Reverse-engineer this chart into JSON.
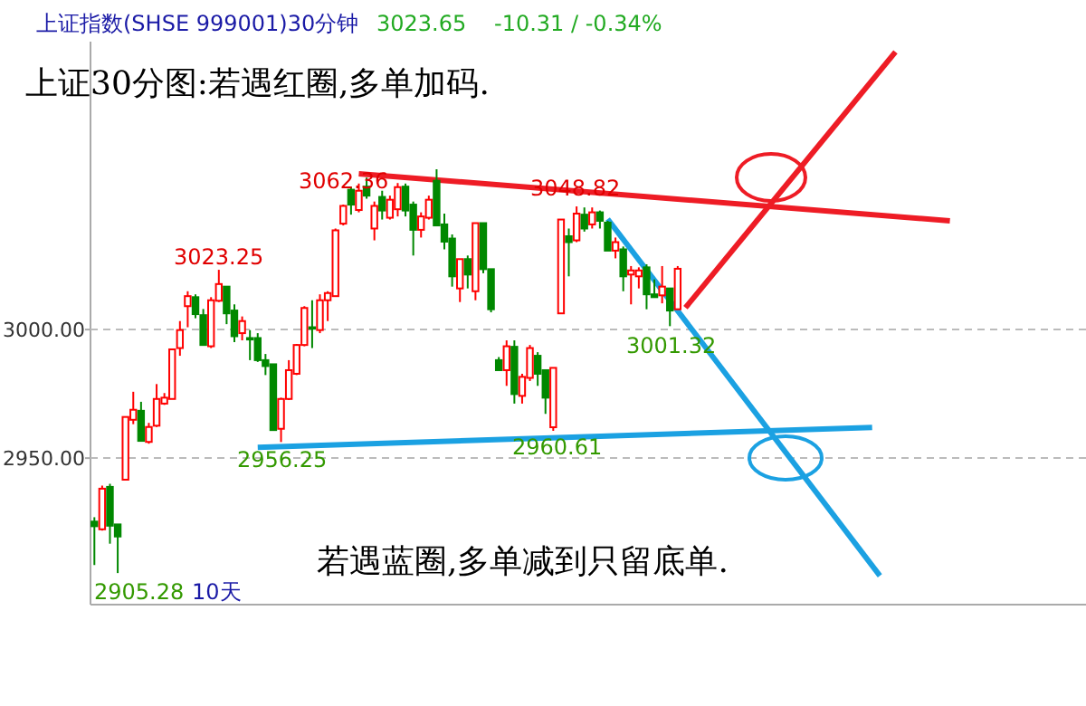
{
  "chart_data": {
    "type": "candlestick",
    "title": "上证指数(SHSE 999001)30分钟",
    "categories": [
      null,
      null,
      null,
      null,
      null,
      null,
      null,
      null,
      null,
      null,
      null,
      null,
      null,
      null,
      null,
      null,
      null,
      null,
      null,
      null,
      null,
      null,
      null,
      null,
      null,
      null,
      null,
      null,
      null,
      null,
      null,
      null,
      null,
      null,
      null,
      null,
      null,
      null,
      null,
      null,
      null,
      null,
      null,
      null,
      null,
      null,
      null,
      null,
      null,
      null,
      null,
      null,
      null,
      null,
      null,
      null,
      null,
      null,
      null,
      null,
      null,
      null,
      null,
      null,
      null,
      null,
      null,
      null,
      null,
      null,
      null,
      null,
      null,
      null,
      null,
      null,
      null,
      null,
      null,
      null,
      null,
      null,
      null,
      null,
      null,
      null,
      null,
      null,
      null,
      null,
      null,
      null,
      null,
      null,
      null,
      null,
      null,
      null,
      null,
      null,
      null,
      null,
      null,
      null,
      null,
      null,
      null,
      null,
      null,
      null,
      null,
      null,
      null,
      null,
      null,
      null,
      null,
      null,
      null,
      null,
      null,
      null,
      null,
      null,
      null,
      null,
      null,
      null
    ],
    "ohlc": [
      [
        2925.3,
        2927,
        2908.4,
        2923.5
      ],
      [
        2922.3,
        2939.3,
        2921.8,
        2938.1
      ],
      [
        2938.8,
        2940,
        2916.7,
        2923.7
      ],
      [
        2924.2,
        2924.2,
        2905.28,
        2919.5
      ],
      [
        2941.6,
        2966,
        2941.6,
        2966
      ],
      [
        2964.9,
        2975.8,
        2963.2,
        2968.8
      ],
      [
        2968.4,
        2971.9,
        2956.7,
        2956.7
      ],
      [
        2956.3,
        2963.7,
        2955.6,
        2962.1
      ],
      [
        2962.6,
        2978.8,
        2962.1,
        2973
      ],
      [
        2971.2,
        2975.3,
        2970.7,
        2973.5
      ],
      [
        2973,
        2992.3,
        2973,
        2992.3
      ],
      [
        2992.8,
        3003.3,
        2989.8,
        2999.8
      ],
      [
        3009.1,
        3014.9,
        3000.9,
        3013
      ],
      [
        3012.6,
        3013.7,
        3004.4,
        3006
      ],
      [
        3005.6,
        3008,
        2994,
        2994
      ],
      [
        2993.5,
        3012.6,
        2992.8,
        3011.4
      ],
      [
        3011.2,
        3023.25,
        3010.7,
        3017.7
      ],
      [
        3016.7,
        3016.7,
        3002.1,
        3006.3
      ],
      [
        3007.4,
        3009.8,
        2995.1,
        2997.4
      ],
      [
        2998.6,
        3005.1,
        2995.8,
        3003.3
      ],
      [
        2996.7,
        2999.8,
        2988.1,
        2996.3
      ],
      [
        2996.7,
        2998.6,
        2987.4,
        2988.1
      ],
      [
        2988.1,
        2990.5,
        2982.3,
        2985.8
      ],
      [
        2986.5,
        2986.5,
        2960.9,
        2960.9
      ],
      [
        2961.4,
        2973.5,
        2956.25,
        2973
      ],
      [
        2973,
        2988.1,
        2972.6,
        2984.2
      ],
      [
        2982.8,
        2994.4,
        2982.3,
        2994
      ],
      [
        2994,
        3009.1,
        2993.5,
        3008.4
      ],
      [
        3000.9,
        3011.4,
        2992.8,
        3000.5
      ],
      [
        2999.8,
        3013.7,
        2998.6,
        3011.4
      ],
      [
        3011.4,
        3014.9,
        3003.3,
        3014.2
      ],
      [
        3013,
        3039.3,
        3013,
        3038.6
      ],
      [
        3041.2,
        3048.6,
        3040.5,
        3048.1
      ],
      [
        3054.4,
        3055.6,
        3044.7,
        3048.6
      ],
      [
        3046.5,
        3056.8,
        3045.6,
        3054
      ],
      [
        3055.6,
        3059.1,
        3050.9,
        3052.1
      ],
      [
        3039.3,
        3049.8,
        3034.7,
        3048.1
      ],
      [
        3051.6,
        3054,
        3042.8,
        3046.3
      ],
      [
        3043.5,
        3052.1,
        3042.8,
        3050.5
      ],
      [
        3046.8,
        3057,
        3044,
        3055.4
      ],
      [
        3055.6,
        3056.8,
        3044,
        3046.3
      ],
      [
        3048.6,
        3049.8,
        3028.8,
        3038.8
      ],
      [
        3038.8,
        3045.6,
        3035.8,
        3044
      ],
      [
        3043.5,
        3052.1,
        3042.8,
        3050.5
      ],
      [
        3057.9,
        3062.36,
        3040.5,
        3040.5
      ],
      [
        3040.9,
        3045.1,
        3031.2,
        3034.2
      ],
      [
        3035.4,
        3037,
        3016.7,
        3020.7
      ],
      [
        3016,
        3027.4,
        3010.7,
        3027.4
      ],
      [
        3027.4,
        3028.8,
        3016,
        3021.4
      ],
      [
        3014.9,
        3041.4,
        3011.4,
        3041.4
      ],
      [
        3041.4,
        3041.4,
        3021.9,
        3023.5
      ],
      [
        3023.5,
        3023.5,
        3006.7,
        3007.9
      ],
      [
        2988.1,
        2989.3,
        2984.2,
        2984.2
      ],
      [
        2984.2,
        2995.8,
        2978.1,
        2993.5
      ],
      [
        2993.3,
        2995.8,
        2971.2,
        2974.9
      ],
      [
        2974.2,
        2982.8,
        2971.2,
        2981.6
      ],
      [
        2981.2,
        2994,
        2980,
        2992.8
      ],
      [
        2989.8,
        2991.2,
        2978.1,
        2982.8
      ],
      [
        2984.2,
        2984.2,
        2967.2,
        2973.5
      ],
      [
        2962,
        2985.1,
        2960.61,
        2985.1
      ],
      [
        3006.3,
        3042.8,
        3006.3,
        3042.8
      ],
      [
        3036.3,
        3039.3,
        3020.7,
        3034
      ],
      [
        3034.7,
        3047.9,
        3034,
        3045.1
      ],
      [
        3044.7,
        3047.5,
        3038.1,
        3039.3
      ],
      [
        3040.9,
        3047.5,
        3039.3,
        3045.6
      ],
      [
        3045.6,
        3046.3,
        3039.3,
        3042.3
      ],
      [
        3041.6,
        3042.3,
        3030.7,
        3030.7
      ],
      [
        3030.7,
        3035.8,
        3027.7,
        3034
      ],
      [
        3031.2,
        3032.3,
        3014.9,
        3020.7
      ],
      [
        3021.4,
        3024.7,
        3009.8,
        3023
      ],
      [
        3020.7,
        3024.2,
        3016,
        3023
      ],
      [
        3024.2,
        3025.4,
        3007.9,
        3013.7
      ],
      [
        3013.7,
        3019.5,
        3012.6,
        3012.6
      ],
      [
        3013.3,
        3024.7,
        3010.2,
        3016.7
      ],
      [
        3016,
        3016,
        3001.32,
        3007.4
      ],
      [
        3007.9,
        3024.7,
        3007.9,
        3023.65
      ],
      null,
      null,
      null,
      null,
      null,
      null,
      null,
      null,
      null,
      null,
      null,
      null,
      null,
      null,
      null,
      null,
      null,
      null,
      null,
      null,
      null,
      null,
      null,
      null,
      null,
      null,
      null,
      null,
      null,
      null,
      null,
      null,
      null,
      null,
      null,
      null,
      null,
      null,
      null,
      null,
      null,
      null,
      null,
      null,
      null,
      null,
      null,
      null,
      null,
      null,
      null,
      null
    ],
    "series": [
      {
        "type": "line",
        "color": "#ee1c25",
        "values": [
          null,
          null,
          null,
          null,
          null,
          null,
          null,
          null,
          null,
          null,
          null,
          null,
          null,
          null,
          null,
          null,
          null,
          null,
          null,
          null,
          null,
          null,
          null,
          null,
          null,
          null,
          null,
          null,
          null,
          null,
          null,
          null,
          null,
          null,
          3060.6,
          null,
          null,
          null,
          null,
          null,
          null,
          null,
          null,
          null,
          null,
          null,
          null,
          null,
          null,
          null,
          null,
          null,
          null,
          null,
          null,
          null,
          null,
          null,
          null,
          null,
          null,
          null,
          null,
          null,
          null,
          null,
          null,
          null,
          null,
          null,
          null,
          null,
          null,
          null,
          null,
          null,
          null,
          null,
          null,
          null,
          null,
          null,
          null,
          null,
          null,
          null,
          null,
          null,
          null,
          null,
          null,
          null,
          null,
          null,
          null,
          null,
          null,
          null,
          null,
          null,
          null,
          null,
          null,
          null,
          null,
          null,
          null,
          null,
          null,
          null,
          3042.3,
          null,
          null,
          null,
          null,
          null,
          null,
          null,
          null,
          null,
          null,
          null,
          null,
          null,
          null,
          null,
          null,
          null
        ]
      },
      {
        "type": "line",
        "color": "#ee1c25",
        "values": [
          null,
          null,
          null,
          null,
          null,
          null,
          null,
          null,
          null,
          null,
          null,
          null,
          null,
          null,
          null,
          null,
          null,
          null,
          null,
          null,
          null,
          null,
          null,
          null,
          null,
          null,
          null,
          null,
          null,
          null,
          null,
          null,
          null,
          null,
          null,
          null,
          null,
          null,
          null,
          null,
          null,
          null,
          null,
          null,
          null,
          null,
          null,
          null,
          null,
          null,
          null,
          null,
          null,
          null,
          null,
          null,
          null,
          null,
          null,
          null,
          null,
          null,
          null,
          null,
          null,
          null,
          null,
          null,
          null,
          null,
          null,
          null,
          null,
          null,
          null,
          null,
          3008.5,
          null,
          null,
          null,
          null,
          null,
          null,
          null,
          null,
          null,
          null,
          null,
          null,
          null,
          null,
          null,
          null,
          null,
          null,
          null,
          null,
          null,
          null,
          null,
          null,
          null,
          null,
          3108,
          null,
          null,
          null,
          null,
          null,
          null,
          null,
          null,
          null,
          null,
          null,
          null,
          null,
          null,
          null,
          null,
          null,
          null,
          null,
          null,
          null,
          null,
          null,
          null
        ]
      },
      {
        "type": "line",
        "color": "#1ba1e2",
        "values": [
          null,
          null,
          null,
          null,
          null,
          null,
          null,
          null,
          null,
          null,
          null,
          null,
          null,
          null,
          null,
          null,
          null,
          null,
          null,
          null,
          null,
          null,
          null,
          null,
          null,
          null,
          null,
          null,
          null,
          null,
          null,
          null,
          null,
          null,
          null,
          null,
          null,
          null,
          null,
          null,
          null,
          null,
          null,
          null,
          null,
          null,
          null,
          null,
          null,
          null,
          null,
          null,
          null,
          null,
          null,
          null,
          null,
          null,
          null,
          null,
          null,
          null,
          null,
          null,
          null,
          null,
          3043,
          null,
          null,
          null,
          null,
          null,
          null,
          null,
          null,
          null,
          null,
          null,
          null,
          null,
          null,
          null,
          null,
          null,
          null,
          null,
          null,
          null,
          null,
          null,
          null,
          null,
          null,
          null,
          null,
          null,
          null,
          null,
          null,
          null,
          null,
          2904.2,
          null,
          null,
          null,
          null,
          null,
          null,
          null,
          null,
          null,
          null,
          null,
          null,
          null,
          null,
          null,
          null,
          null,
          null,
          null,
          null,
          null,
          null,
          null,
          null,
          null,
          null
        ]
      },
      {
        "type": "line",
        "color": "#1ba1e2",
        "values": [
          null,
          null,
          null,
          null,
          null,
          null,
          null,
          null,
          null,
          null,
          null,
          null,
          null,
          null,
          null,
          null,
          null,
          null,
          null,
          null,
          null,
          2954.2,
          null,
          null,
          null,
          null,
          null,
          null,
          null,
          null,
          null,
          null,
          null,
          null,
          null,
          null,
          null,
          null,
          null,
          null,
          null,
          null,
          null,
          null,
          null,
          null,
          null,
          null,
          null,
          null,
          null,
          null,
          null,
          null,
          null,
          null,
          null,
          null,
          null,
          null,
          null,
          null,
          null,
          null,
          null,
          null,
          null,
          null,
          null,
          null,
          null,
          null,
          null,
          null,
          null,
          null,
          null,
          null,
          null,
          null,
          null,
          null,
          null,
          null,
          null,
          null,
          null,
          null,
          null,
          null,
          null,
          null,
          null,
          null,
          null,
          null,
          null,
          null,
          null,
          null,
          2961.9,
          null,
          null,
          null,
          null,
          null,
          null,
          null,
          null,
          null,
          null,
          null,
          null,
          null,
          null,
          null,
          null,
          null,
          null,
          null,
          null,
          null,
          null,
          null,
          null,
          null,
          null,
          null
        ]
      }
    ],
    "ylim": [
      2893,
      3112
    ],
    "yticks": [
      {
        "value": 2950,
        "label": "2950.00"
      },
      {
        "value": 3000,
        "label": "3000.00"
      }
    ],
    "grid": "y",
    "annotations": [
      "3023.65",
      "-10.31 / -0.34%",
      "上证30分图:若遇红圈,多单加码.",
      "若遇蓝圈,多单减到只留底单.",
      "3062.36",
      "3048.82",
      "3023.25",
      "2956.25",
      "2960.61",
      "3001.32",
      "2905.28",
      "10天"
    ]
  }
}
